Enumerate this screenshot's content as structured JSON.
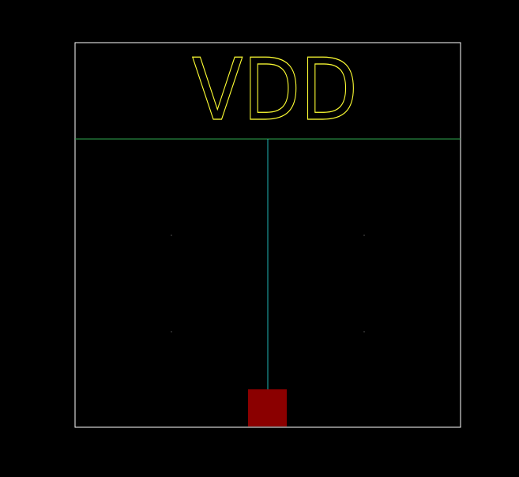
{
  "symbol": {
    "label": "VDD"
  },
  "colors": {
    "background": "#000000",
    "frame": "#ffffff",
    "power_rail": "#2fa84f",
    "wire": "#1fb3b3",
    "label": "#ffff33",
    "pin": "#8b0000",
    "grid_dot": "#9a9a9a"
  }
}
